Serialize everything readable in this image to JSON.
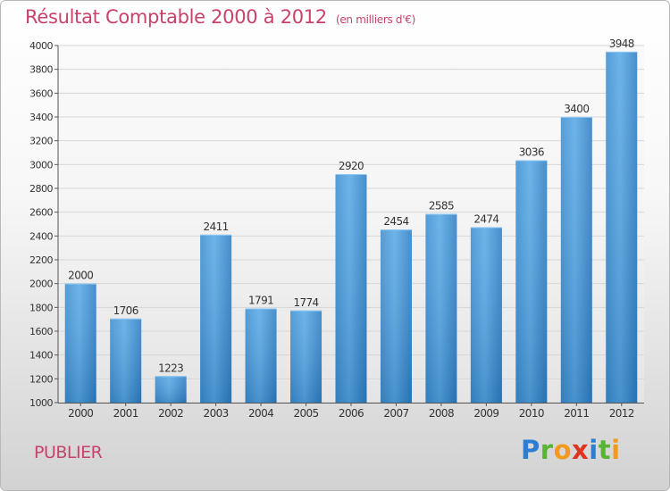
{
  "title": "Résultat Comptable 2000 à 2012",
  "unit": "(en milliers d'€)",
  "town": "PUBLIER",
  "logo": {
    "text": "Proxiti",
    "letters": [
      {
        "ch": "P",
        "color": "#2c7fd0"
      },
      {
        "ch": "r",
        "color": "#58b534"
      },
      {
        "ch": "o",
        "color": "#f39a1d"
      },
      {
        "ch": "x",
        "color": "#e0341f"
      },
      {
        "ch": "i",
        "color": "#2c7fd0"
      },
      {
        "ch": "t",
        "color": "#58b534"
      },
      {
        "ch": "i",
        "color": "#f39a1d"
      }
    ]
  },
  "chart_data": {
    "type": "bar",
    "title": "Résultat Comptable 2000 à 2012",
    "subtitle": "(en milliers d'€)",
    "xlabel": "",
    "ylabel": "",
    "categories": [
      "2000",
      "2001",
      "2002",
      "2003",
      "2004",
      "2005",
      "2006",
      "2007",
      "2008",
      "2009",
      "2010",
      "2011",
      "2012"
    ],
    "values": [
      2000,
      1706,
      1223,
      2411,
      1791,
      1774,
      2920,
      2454,
      2585,
      2474,
      3036,
      3400,
      3948
    ],
    "ylim": [
      1000,
      4000
    ],
    "yticks": [
      1000,
      1200,
      1400,
      1600,
      1800,
      2000,
      2200,
      2400,
      2600,
      2800,
      3000,
      3200,
      3400,
      3600,
      3800,
      4000
    ],
    "grid": true,
    "bar_color": "#4a9ee0"
  }
}
